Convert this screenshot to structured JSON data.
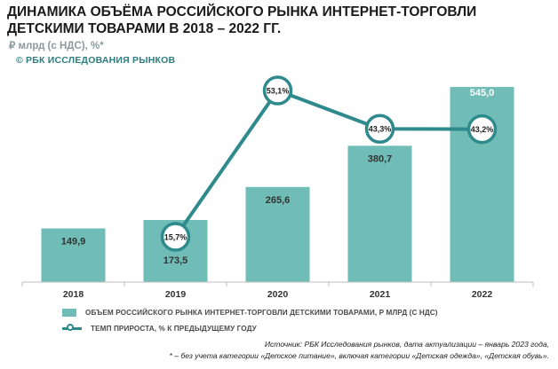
{
  "title": "ДИНАМИКА ОБЪЁМА РОССИЙСКОГО РЫНКА ИНТЕРНЕТ-ТОРГОВЛИ ДЕТСКИМИ ТОВАРАМИ В 2018 – 2022 ГГ.",
  "units": "₽ млрд (с НДС), %*",
  "copyright": "© РБК ИССЛЕДОВАНИЯ РЫНКОВ",
  "colors": {
    "bar": "#6fbdb6",
    "line": "#2e8a8c",
    "marker_fill": "#ffffff"
  },
  "chart_data": {
    "type": "bar",
    "categories": [
      "2018",
      "2019",
      "2020",
      "2021",
      "2022"
    ],
    "series": [
      {
        "name": "ОБЪЕМ РОССИЙСКОГО РЫНКА ИНТЕРНЕТ-ТОРГОВЛИ ДЕТСКИМИ ТОВАРАМИ, Р МЛРД  (С НДС)",
        "type": "bar",
        "values": [
          149.9,
          173.5,
          265.6,
          380.7,
          545.0
        ],
        "labels": [
          "149,9",
          "173,5",
          "265,6",
          "380,7",
          "545,0"
        ]
      },
      {
        "name": "ТЕМП ПРИРОСТА, % К ПРЕДЫДУЩЕМУ ГОДУ",
        "type": "line",
        "values": [
          null,
          15.7,
          53.1,
          43.3,
          43.2
        ],
        "labels": [
          "",
          "15,7%",
          "53,1%",
          "43,3%",
          "43,2%"
        ]
      }
    ],
    "legend_position": "bottom",
    "grid": false
  },
  "source": "Источник: РБК Исследования рынков, дата актуализации – январь 2023 года,",
  "footnote": "* – без учета категории «Детское питание», включая категории «Детская одежда», «Детская обувь»."
}
